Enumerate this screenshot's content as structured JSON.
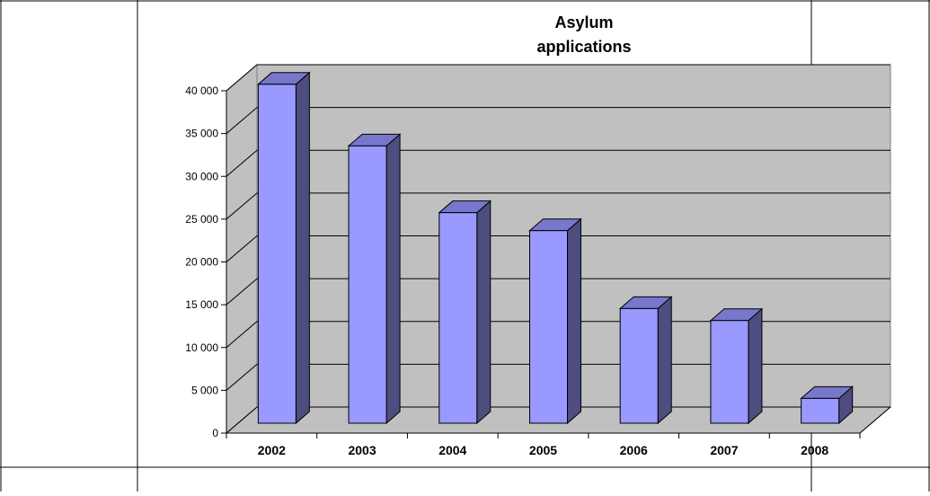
{
  "chart_data": {
    "type": "bar",
    "title": "Asylum applications",
    "title_lines": [
      "Asylum",
      "applications"
    ],
    "categories": [
      "2002",
      "2003",
      "2004",
      "2005",
      "2006",
      "2007",
      "2008"
    ],
    "values": [
      39600,
      32400,
      24600,
      22500,
      13400,
      12000,
      2900
    ],
    "ylim": [
      0,
      40000
    ],
    "yticks": [
      0,
      5000,
      10000,
      15000,
      20000,
      25000,
      30000,
      35000,
      40000
    ],
    "ytick_labels": [
      "0",
      "5 000",
      "10 000",
      "15 000",
      "20 000",
      "25 000",
      "30 000",
      "35 000",
      "40 000"
    ],
    "xlabel": "",
    "ylabel": "",
    "grid": true,
    "legend": false,
    "colors": {
      "bar_front": "#9999ff",
      "bar_side": "#4d4d80",
      "bar_top": "#7777cc",
      "back_wall": "#c0c0c0",
      "floor": "#c0c0c0",
      "gridline": "#000000"
    }
  }
}
